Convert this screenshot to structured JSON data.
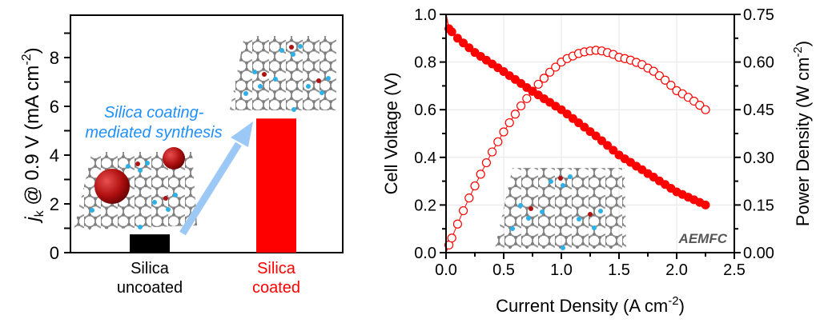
{
  "colors": {
    "accent": "#ff0000",
    "uncoated": "#000000",
    "arrow": "#9cc8f5",
    "annotation": "#1e8fff",
    "grid": "#e6e6e6"
  },
  "chart_data": [
    {
      "type": "bar",
      "ylabel": {
        "main": "j",
        "sub": "k",
        "rest": " @ 0.9 V (mA cm",
        "sup": "-2",
        "close": ")"
      },
      "ylim": [
        0,
        9.7
      ],
      "yticks": [
        "0",
        "2",
        "4",
        "6",
        "8"
      ],
      "categories": [
        {
          "line1": "Silica",
          "line2": "uncoated",
          "value": 0.75,
          "color": "#000000"
        },
        {
          "line1": "Silica",
          "line2": "coated",
          "value": 5.5,
          "color": "#ff0000"
        }
      ],
      "annotation": {
        "line1": "Silica coating-",
        "line2": "mediated synthesis"
      }
    },
    {
      "type": "scatter",
      "title": "",
      "xlabel": {
        "main": "Current Density (A cm",
        "sup": "-2",
        "close": ")"
      },
      "ylabel_left": "Cell Voltage (V)",
      "ylabel_right": {
        "main": "Power Density (W cm",
        "sup": "-2",
        "close": ")"
      },
      "xlim": [
        0,
        2.5
      ],
      "ylim_left": [
        0,
        1.0
      ],
      "ylim_right": [
        0,
        0.75
      ],
      "xticks": [
        "0.0",
        "0.5",
        "1.0",
        "1.5",
        "2.0",
        "2.5"
      ],
      "yticks_left": [
        "0.0",
        "0.2",
        "0.4",
        "0.6",
        "0.8",
        "1.0"
      ],
      "yticks_right": [
        "0.00",
        "0.15",
        "0.30",
        "0.45",
        "0.60",
        "0.75"
      ],
      "grid": true,
      "annotation": "AEMFC",
      "x": [
        0.025,
        0.05,
        0.1,
        0.15,
        0.2,
        0.25,
        0.3,
        0.35,
        0.4,
        0.45,
        0.5,
        0.55,
        0.6,
        0.65,
        0.7,
        0.75,
        0.8,
        0.85,
        0.9,
        0.95,
        1.0,
        1.05,
        1.1,
        1.15,
        1.2,
        1.25,
        1.3,
        1.35,
        1.4,
        1.45,
        1.5,
        1.55,
        1.6,
        1.65,
        1.7,
        1.75,
        1.8,
        1.85,
        1.9,
        1.95,
        2.0,
        2.05,
        2.1,
        2.15,
        2.2,
        2.25
      ],
      "series": [
        {
          "name": "Cell Voltage",
          "axis": "left",
          "marker": "filled",
          "open_circuit": 1.0,
          "values": [
            0.94,
            0.927,
            0.9,
            0.88,
            0.86,
            0.84,
            0.824,
            0.808,
            0.792,
            0.776,
            0.76,
            0.743,
            0.727,
            0.71,
            0.693,
            0.677,
            0.662,
            0.646,
            0.631,
            0.615,
            0.6,
            0.582,
            0.563,
            0.545,
            0.527,
            0.508,
            0.49,
            0.47,
            0.45,
            0.43,
            0.41,
            0.394,
            0.379,
            0.363,
            0.348,
            0.332,
            0.317,
            0.301,
            0.286,
            0.27,
            0.255,
            0.244,
            0.233,
            0.222,
            0.211,
            0.2
          ]
        },
        {
          "name": "Power Density",
          "axis": "right",
          "marker": "open",
          "values": [
            0.024,
            0.046,
            0.09,
            0.132,
            0.172,
            0.21,
            0.247,
            0.283,
            0.317,
            0.349,
            0.38,
            0.409,
            0.436,
            0.462,
            0.485,
            0.508,
            0.53,
            0.549,
            0.568,
            0.584,
            0.6,
            0.611,
            0.619,
            0.627,
            0.632,
            0.635,
            0.637,
            0.635,
            0.63,
            0.624,
            0.615,
            0.611,
            0.606,
            0.599,
            0.592,
            0.581,
            0.571,
            0.557,
            0.543,
            0.527,
            0.51,
            0.5,
            0.489,
            0.477,
            0.464,
            0.45
          ]
        }
      ]
    }
  ]
}
